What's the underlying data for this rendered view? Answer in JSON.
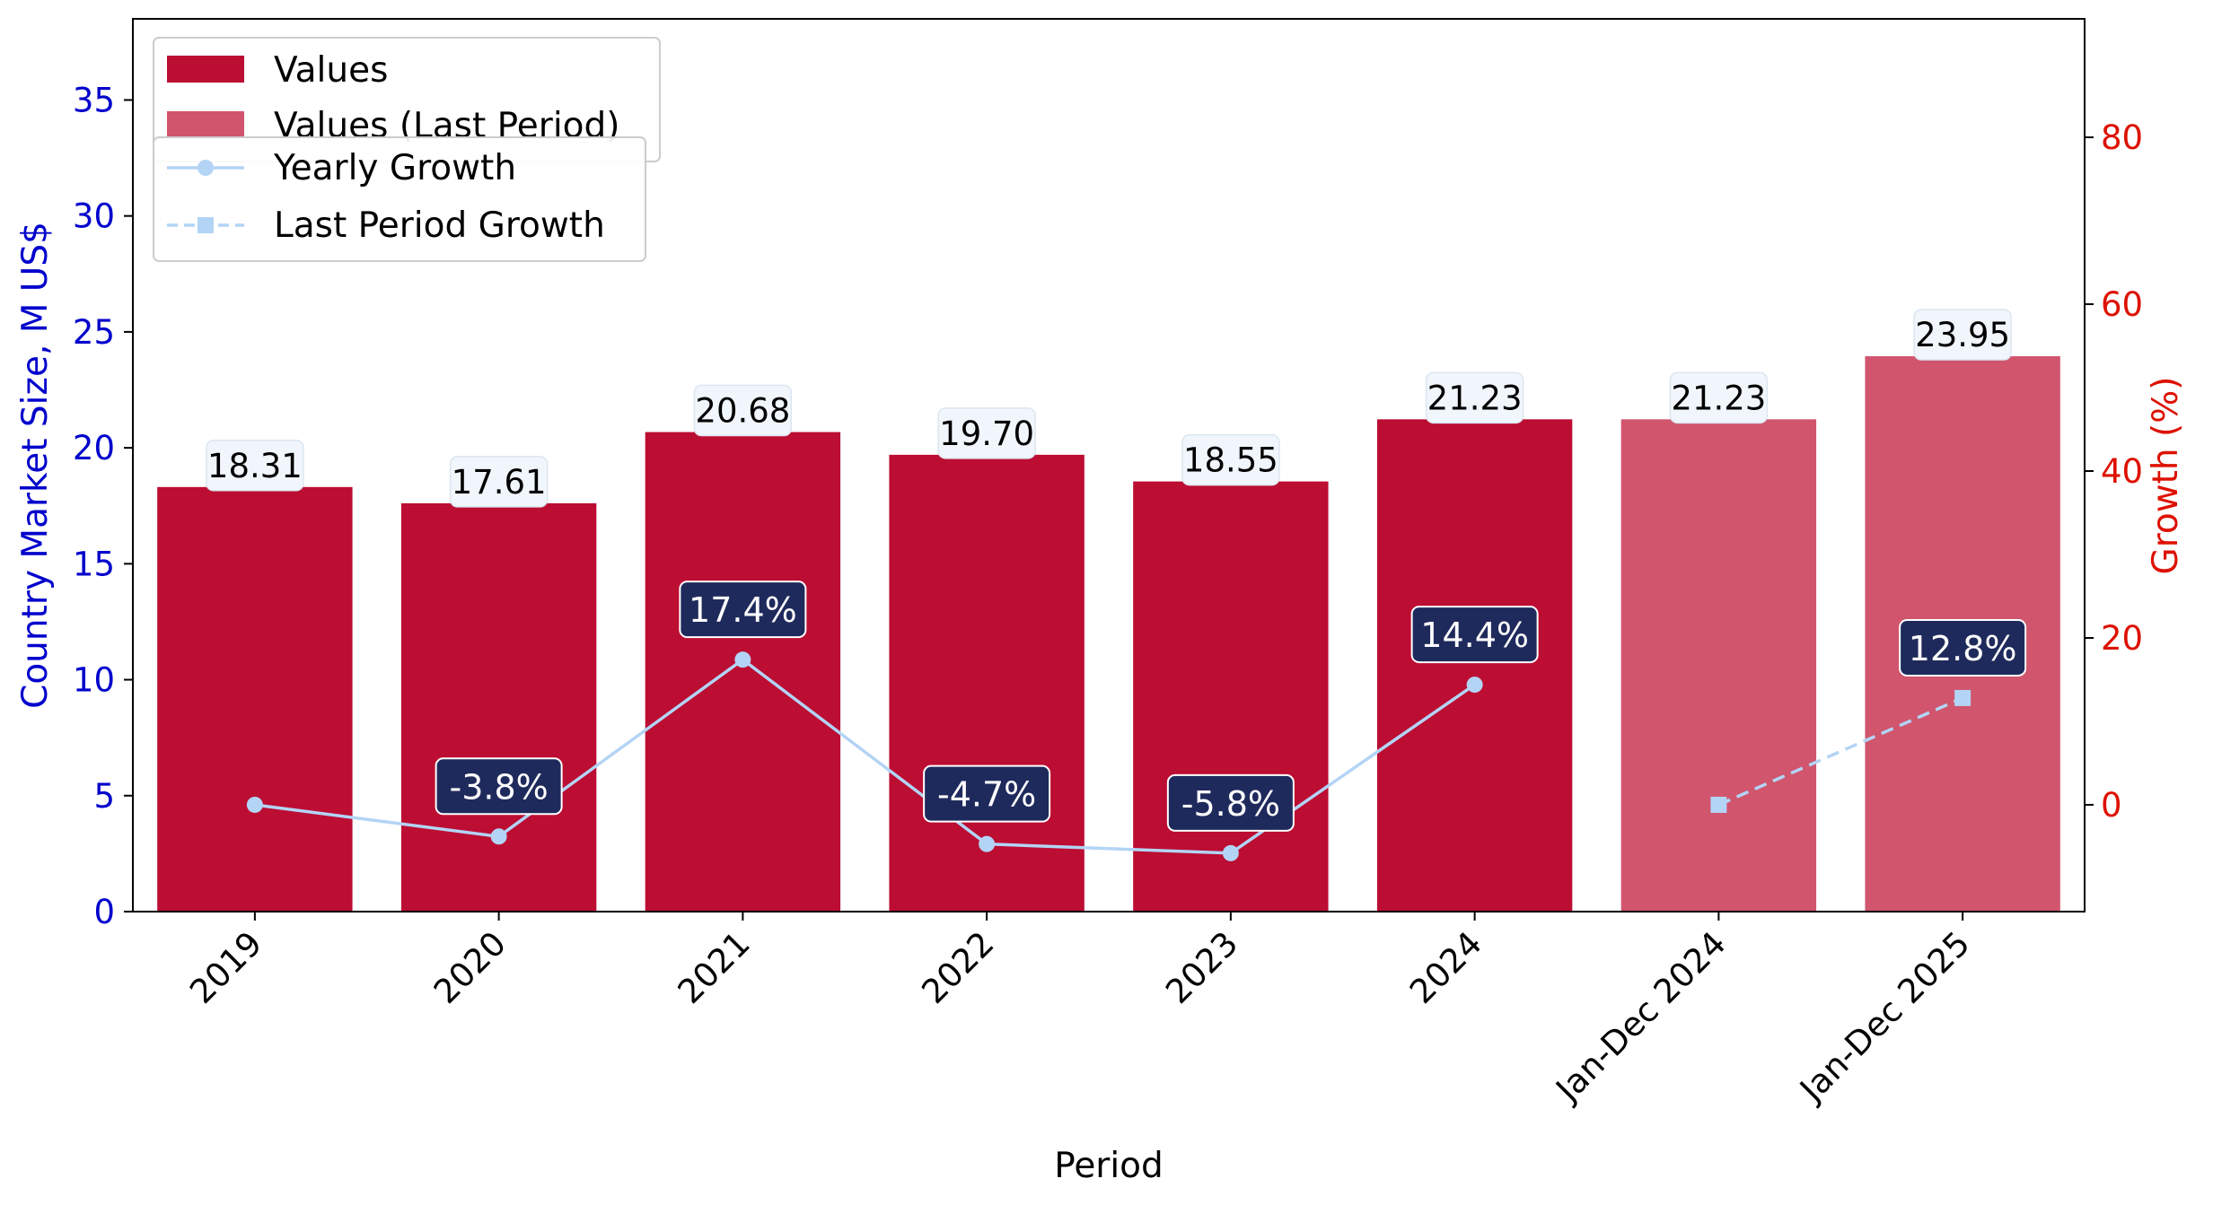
{
  "chart_data": {
    "type": "bar",
    "categories": [
      "2019",
      "2020",
      "2021",
      "2022",
      "2023",
      "2024",
      "Jan-Dec 2024",
      "Jan-Dec 2025"
    ],
    "series": [
      {
        "name": "Values",
        "kind": "bar",
        "values": [
          18.31,
          17.61,
          20.68,
          19.7,
          18.55,
          21.23,
          null,
          null
        ],
        "color": "#BC0D33"
      },
      {
        "name": "Values (Last Period)",
        "kind": "bar",
        "values": [
          null,
          null,
          null,
          null,
          null,
          null,
          21.23,
          23.95
        ],
        "color": "#D0556D"
      },
      {
        "name": "Yearly Growth",
        "kind": "line",
        "axis": "right",
        "marker": "circle",
        "values": [
          0.0,
          -3.8,
          17.4,
          -4.7,
          -5.8,
          14.4,
          null,
          null
        ],
        "color": "#B3D4F5"
      },
      {
        "name": "Last Period Growth",
        "kind": "line",
        "axis": "right",
        "marker": "square",
        "dashed": true,
        "values": [
          null,
          null,
          null,
          null,
          null,
          null,
          0.0,
          12.8
        ],
        "color": "#B3D4F5"
      }
    ],
    "bar_labels": [
      "18.31",
      "17.61",
      "20.68",
      "19.70",
      "18.55",
      "21.23",
      "21.23",
      "23.95"
    ],
    "growth_labels": [
      "",
      "-3.8%",
      "17.4%",
      "-4.7%",
      "-5.8%",
      "14.4%",
      "",
      "12.8%"
    ],
    "xlabel": "Period",
    "ylabel": "Country Market Size, M US$",
    "ylabel_right": "Growth (%)",
    "ylim": [
      0,
      38.5
    ],
    "ylim_right": [
      -12.8,
      94.2
    ],
    "yticks": [
      "0",
      "5",
      "10",
      "15",
      "20",
      "25",
      "30",
      "35"
    ],
    "yticks_right": [
      "0",
      "20",
      "40",
      "60",
      "80"
    ],
    "legend_bars": [
      "Values",
      "Values (Last Period)"
    ],
    "legend_lines": [
      "Yearly Growth",
      "Last Period Growth"
    ],
    "legend_position": "top-left",
    "grid": false,
    "colors": {
      "left_axis": "#0000CC",
      "right_axis": "#DD1100",
      "label_box_fill": "#F0F6FC",
      "growth_box_fill": "#1F2A5C"
    }
  }
}
